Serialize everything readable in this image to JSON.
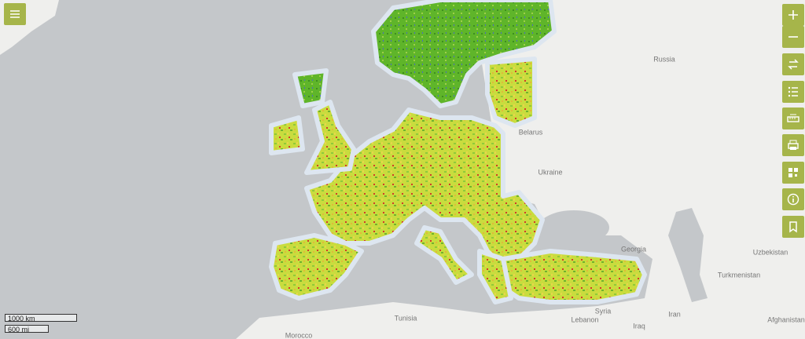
{
  "map": {
    "labels": [
      {
        "text": "Russia"
      },
      {
        "text": "Belarus"
      },
      {
        "text": "Ukraine"
      },
      {
        "text": "Georgia"
      },
      {
        "text": "Uzbekistan"
      },
      {
        "text": "Turkmenistan"
      },
      {
        "text": "Syria"
      },
      {
        "text": "Iraq"
      },
      {
        "text": "Iran"
      },
      {
        "text": "Afghanistan"
      },
      {
        "text": "Tunisia"
      },
      {
        "text": "Morocco"
      },
      {
        "text": "Lebanon"
      }
    ],
    "scale": {
      "metric": "1000 km",
      "imperial": "600 mi"
    }
  }
}
